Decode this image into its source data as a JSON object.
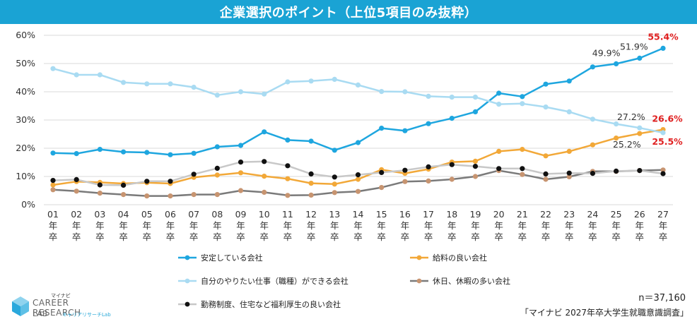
{
  "header": {
    "title": "企業選択のポイント（上位5項目のみ抜粋）"
  },
  "footer": {
    "sample": "n＝37,160",
    "source": "「マイナビ 2027年卒大学生就職意識調査」"
  },
  "logo": {
    "small": "マイナビ",
    "line1": "CAREER RESEARCH",
    "line2": "LAB",
    "sub": "キャリアリサーチLab"
  },
  "chart_data": {
    "type": "line",
    "categories": [
      "01\n年\n卒",
      "02\n年\n卒",
      "03\n年\n卒",
      "04\n年\n卒",
      "05\n年\n卒",
      "06\n年\n卒",
      "07\n年\n卒",
      "08\n年\n卒",
      "09\n年\n卒",
      "10\n年\n卒",
      "11\n年\n卒",
      "12\n年\n卒",
      "13\n年\n卒",
      "14\n年\n卒",
      "15\n年\n卒",
      "16\n年\n卒",
      "17\n年\n卒",
      "18\n年\n卒",
      "19\n年\n卒",
      "20\n年\n卒",
      "21\n年\n卒",
      "22\n年\n卒",
      "23\n年\n卒",
      "24\n年\n卒",
      "25\n年\n卒",
      "26\n年\n卒",
      "27\n年\n卒"
    ],
    "yticks": [
      "0%",
      "10%",
      "20%",
      "30%",
      "40%",
      "50%",
      "60%"
    ],
    "ylim": [
      0,
      60
    ],
    "grid": true,
    "legend_position": "bottom",
    "series": [
      {
        "name": "安定している会社",
        "color": "#1ea6df",
        "marker": "#1ea6df",
        "values": [
          18.3,
          18.1,
          19.6,
          18.7,
          18.5,
          17.7,
          18.2,
          20.5,
          21.0,
          25.8,
          22.9,
          22.5,
          19.3,
          22.0,
          27.1,
          26.2,
          28.7,
          30.6,
          32.9,
          39.5,
          38.3,
          42.7,
          43.8,
          48.8,
          49.9,
          51.9,
          55.4
        ]
      },
      {
        "name": "給料の良い会社",
        "color": "#f2a838",
        "marker": "#f2a838",
        "values": [
          7.0,
          8.2,
          7.9,
          7.5,
          7.8,
          7.5,
          9.7,
          10.5,
          11.3,
          10.1,
          9.2,
          7.6,
          7.3,
          9.0,
          12.4,
          11.1,
          12.6,
          15.1,
          15.4,
          18.9,
          19.6,
          17.3,
          18.9,
          21.2,
          23.6,
          25.2,
          26.6
        ]
      },
      {
        "name": "自分のやりたい仕事（職種）ができる会社",
        "color": "#a9dbf2",
        "marker": "#a9dbf2",
        "values": [
          48.2,
          46.0,
          46.0,
          43.3,
          42.8,
          42.8,
          41.6,
          38.8,
          40.0,
          39.2,
          43.5,
          43.8,
          44.4,
          42.4,
          40.1,
          40.0,
          38.4,
          38.1,
          38.1,
          35.6,
          35.8,
          34.6,
          32.9,
          30.3,
          28.6,
          27.2,
          25.5
        ]
      },
      {
        "name": "休日、休暇の多い会社",
        "color": "#7a7a7a",
        "marker": "#c79470",
        "values": [
          5.3,
          4.8,
          4.1,
          3.6,
          3.1,
          3.1,
          3.6,
          3.6,
          5.0,
          4.4,
          3.3,
          3.4,
          4.3,
          4.7,
          6.1,
          8.2,
          8.4,
          9.0,
          10.0,
          12.1,
          10.7,
          9.0,
          9.9,
          11.8,
          11.8,
          12.1,
          12.3
        ]
      },
      {
        "name": "勤務制度、住宅など福利厚生の良い会社",
        "color": "#c8c8c8",
        "marker": "#111111",
        "values": [
          8.6,
          8.9,
          7.0,
          6.9,
          8.3,
          8.3,
          10.8,
          12.9,
          15.1,
          15.3,
          13.8,
          10.9,
          9.8,
          10.6,
          11.4,
          12.2,
          13.4,
          14.2,
          13.6,
          12.8,
          12.8,
          10.9,
          11.2,
          11.1,
          11.9,
          12.1,
          11.0
        ]
      }
    ],
    "annotations": [
      {
        "text": "55.4%",
        "color": "#e02020",
        "series": 0,
        "index": 26
      },
      {
        "text": "51.9%",
        "color": "#333333",
        "series": 0,
        "index": 25
      },
      {
        "text": "49.9%",
        "color": "#333333",
        "series": 0,
        "index": 24
      },
      {
        "text": "27.2%",
        "color": "#333333",
        "series": 2,
        "index": 25
      },
      {
        "text": "26.6%",
        "color": "#e02020",
        "series": 1,
        "index": 26
      },
      {
        "text": "25.2%",
        "color": "#333333",
        "series": 1,
        "index": 25
      },
      {
        "text": "25.5%",
        "color": "#e02020",
        "series": 2,
        "index": 26
      }
    ]
  }
}
